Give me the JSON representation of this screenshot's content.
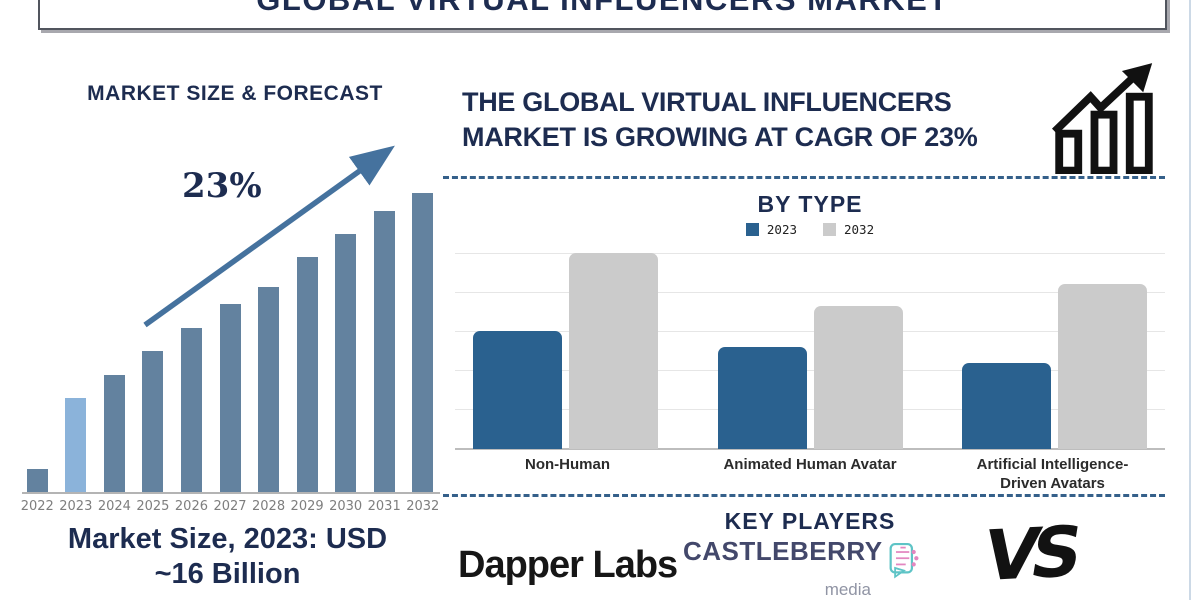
{
  "header": {
    "title": "GLOBAL VIRTUAL INFLUENCERS MARKET"
  },
  "market_size": {
    "cagr_label": "23%",
    "caption_line1": "Market Size, 2023: USD",
    "caption_line2": "~16 Billion"
  },
  "banner": {
    "line1": "THE GLOBAL VIRTUAL INFLUENCERS",
    "line2": "MARKET IS GROWING AT CAGR OF 23%",
    "icon": "growth-chart-icon"
  },
  "key_players": {
    "title": "KEY PLAYERS",
    "dapper": "Dapper Labs",
    "castleberry": {
      "name": "CASTLEBERRY",
      "sub": "media",
      "icon": "circuit-face-icon"
    },
    "vs": "VS"
  },
  "colors": {
    "navy": "#1d2c50",
    "arrow_steel_blue": "#45729e",
    "left_bar": "#63829f",
    "left_bar_highlight": "#8bb3da",
    "bytype_2023_blue": "#2a618f",
    "bytype_2032_gray": "#cbcbcb",
    "dashed_line": "#35608a",
    "year_label_gray": "#7e7e7e",
    "category_label": "#2b2b2b"
  },
  "chart_data": [
    {
      "id": "market-size-forecast",
      "type": "bar",
      "title": "MARKET SIZE & FORECAST",
      "categories": [
        "2022",
        "2023",
        "2024",
        "2025",
        "2026",
        "2027",
        "2028",
        "2029",
        "2030",
        "2031",
        "2032"
      ],
      "values": [
        4,
        16,
        20,
        24,
        28,
        32,
        35,
        40,
        44,
        48,
        51
      ],
      "unit": "USD billions (estimated from bar heights; label states 2023 ≈ 16 Billion)",
      "highlight_index": 1,
      "highlight_note": "2023 bar shown in light blue, all other bars slate blue",
      "annotation": "23% with upward trend arrow",
      "xlabel": "",
      "ylabel": "",
      "y_axis_labels": false,
      "grid": false,
      "legend": false
    },
    {
      "id": "by-type",
      "type": "bar",
      "title": "BY TYPE",
      "categories": [
        "Non-Human",
        "Animated Human Avatar",
        "Artificial Intelligence-Driven Avatars"
      ],
      "categories_lines": [
        [
          "Non-Human"
        ],
        [
          "Animated Human Avatar"
        ],
        [
          "Artificial Intelligence-",
          "Driven Avatars"
        ]
      ],
      "series": [
        {
          "name": "2023",
          "color": "#2a618f",
          "values": [
            60,
            52,
            44
          ]
        },
        {
          "name": "2032",
          "color": "#cbcbcb",
          "values": [
            100,
            73,
            84
          ]
        }
      ],
      "unit": "relative value (% of tallest bar, no y-axis labels shown)",
      "legend_position": "top",
      "grid": true,
      "grid_lines": 5
    }
  ]
}
